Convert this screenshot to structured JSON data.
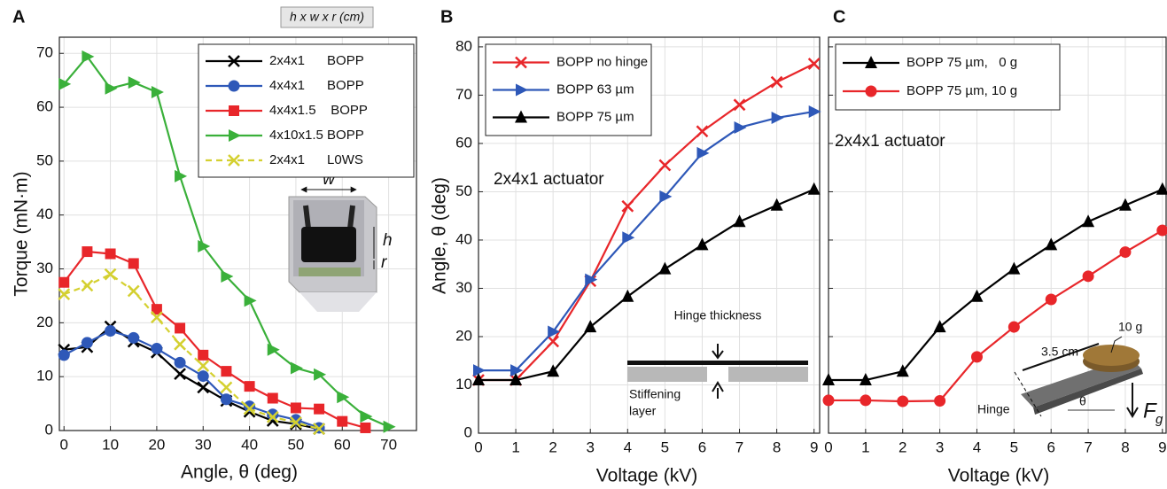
{
  "chart_data": [
    {
      "type": "line",
      "panel_label": "A",
      "header": "h x w x r (cm)",
      "xlabel": "Angle, θ (deg)",
      "ylabel": "Torque (mN·m)",
      "x": [
        0,
        5,
        10,
        15,
        20,
        25,
        30,
        35,
        40,
        45,
        50,
        55,
        60,
        65,
        70
      ],
      "xlim": [
        -1,
        76
      ],
      "ylim": [
        0,
        73
      ],
      "xticks": [
        0,
        10,
        20,
        30,
        40,
        50,
        60,
        70
      ],
      "yticks": [
        0,
        10,
        20,
        30,
        40,
        50,
        60,
        70
      ],
      "grid": true,
      "legend": "upper right",
      "ytick_labels": true,
      "annotations": {
        "w": "w",
        "h": "h",
        "r": "r"
      },
      "series": [
        {
          "name": "2x4x1      BOPP",
          "color": "#000000",
          "marker": "x",
          "dashed": false,
          "values": [
            15,
            15.5,
            19.3,
            16.5,
            14.5,
            10.5,
            8,
            5.5,
            3.5,
            1.8,
            1.2,
            0.3,
            null,
            null,
            null
          ]
        },
        {
          "name": "4x4x1      BOPP",
          "color": "#2e58b8",
          "marker": "circle",
          "dashed": false,
          "values": [
            14,
            16.3,
            18.5,
            17.2,
            15.2,
            12.6,
            10.1,
            5.8,
            4.5,
            3,
            2,
            0.5,
            null,
            null,
            null
          ]
        },
        {
          "name": "4x4x1.5    BOPP",
          "color": "#e8262a",
          "marker": "square",
          "dashed": false,
          "values": [
            27.5,
            33.2,
            32.8,
            31,
            22.5,
            19,
            14,
            11,
            8.2,
            6,
            4.2,
            4,
            1.7,
            0.5,
            null
          ]
        },
        {
          "name": "4x10x1.5 BOPP",
          "color": "#3ab03a",
          "marker": "triangle-right",
          "dashed": false,
          "values": [
            64.3,
            69.4,
            63.5,
            64.6,
            62.8,
            47.2,
            34.2,
            28.6,
            24.1,
            15,
            11.6,
            10.4,
            6.2,
            2.6,
            0.7
          ]
        },
        {
          "name": "2x4x1      L0WS",
          "color": "#d4d030",
          "marker": "x",
          "dashed": true,
          "values": [
            25.3,
            26.9,
            29,
            25.9,
            21,
            16,
            12,
            8,
            4,
            2.5,
            1.5,
            0.3,
            null,
            null,
            null
          ]
        }
      ]
    },
    {
      "type": "line",
      "panel_label": "B",
      "xlabel": "Voltage (kV)",
      "ylabel": "Angle, θ (deg)",
      "x": [
        0,
        1,
        2,
        3,
        4,
        5,
        6,
        7,
        8,
        9
      ],
      "xlim": [
        0,
        9.15
      ],
      "ylim": [
        0,
        82
      ],
      "xticks": [
        0,
        1,
        2,
        3,
        4,
        5,
        6,
        7,
        8,
        9
      ],
      "yticks": [
        0,
        10,
        20,
        30,
        40,
        50,
        60,
        70,
        80
      ],
      "grid": true,
      "legend": "upper left",
      "ytick_labels": true,
      "annotations": {
        "actuator": "2x4x1 actuator",
        "hinge": "Hinge thickness",
        "stiff1": "Stiffening",
        "stiff2": "layer"
      },
      "series": [
        {
          "name": "BOPP no hinge",
          "color": "#e8262a",
          "marker": "x",
          "dashed": false,
          "values": [
            11,
            11,
            19,
            31.5,
            47,
            55.5,
            62.5,
            68,
            72.7,
            76.5
          ]
        },
        {
          "name": "BOPP 63 µm",
          "color": "#2e58b8",
          "marker": "triangle-right",
          "dashed": false,
          "values": [
            13,
            13,
            21,
            31.8,
            40.5,
            49,
            58,
            63.3,
            65.3,
            66.6
          ]
        },
        {
          "name": "BOPP 75 µm",
          "color": "#000000",
          "marker": "triangle",
          "dashed": false,
          "values": [
            11,
            11,
            12.8,
            22,
            28.3,
            34,
            39,
            43.8,
            47.2,
            50.5
          ]
        }
      ]
    },
    {
      "type": "line",
      "panel_label": "C",
      "xlabel": "Voltage (kV)",
      "x": [
        0,
        1,
        2,
        3,
        4,
        5,
        6,
        7,
        8,
        9
      ],
      "xlim": [
        0,
        9.1
      ],
      "ylim": [
        0,
        82
      ],
      "xticks": [
        0,
        1,
        2,
        3,
        4,
        5,
        6,
        7,
        8,
        9
      ],
      "yticks": [
        0,
        10,
        20,
        30,
        40,
        50,
        60,
        70,
        80
      ],
      "grid": true,
      "legend": "upper left",
      "ytick_labels": false,
      "annotations": {
        "actuator": "2x4x1 actuator",
        "mass": "10 g",
        "length": "3.5 cm",
        "hinge": "Hinge",
        "theta": "θ",
        "force": "F",
        "force_sub": "g"
      },
      "series": [
        {
          "name": "BOPP 75 µm,   0 g",
          "color": "#000000",
          "marker": "triangle",
          "dashed": false,
          "values": [
            11,
            11,
            12.8,
            22,
            28.3,
            34,
            39,
            43.8,
            47.2,
            50.5
          ]
        },
        {
          "name": "BOPP 75 µm, 10 g",
          "color": "#e8262a",
          "marker": "circle",
          "dashed": false,
          "values": [
            6.8,
            6.8,
            6.6,
            6.7,
            15.8,
            22,
            27.7,
            32.5,
            37.5,
            42
          ]
        }
      ]
    }
  ]
}
